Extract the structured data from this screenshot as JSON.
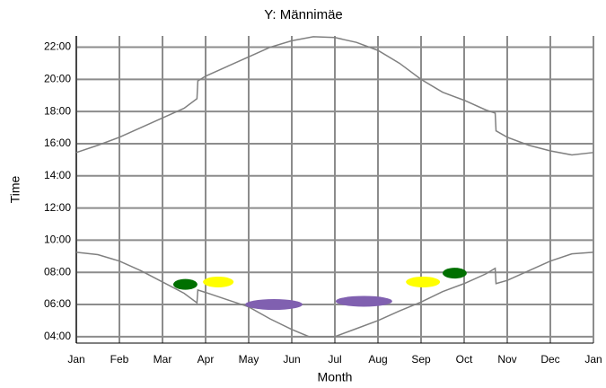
{
  "chart_data": {
    "type": "line",
    "title": "Y: Männimäe",
    "x_label": "Month",
    "y_label": "Time",
    "xlim": [
      0,
      12
    ],
    "ylim": [
      3.6,
      22.7
    ],
    "xticks": [
      {
        "value": 0,
        "label": "Jan"
      },
      {
        "value": 1,
        "label": "Feb"
      },
      {
        "value": 2,
        "label": "Mar"
      },
      {
        "value": 3,
        "label": "Apr"
      },
      {
        "value": 4,
        "label": "May"
      },
      {
        "value": 5,
        "label": "Jun"
      },
      {
        "value": 6,
        "label": "Jul"
      },
      {
        "value": 7,
        "label": "Aug"
      },
      {
        "value": 8,
        "label": "Sep"
      },
      {
        "value": 9,
        "label": "Oct"
      },
      {
        "value": 10,
        "label": "Nov"
      },
      {
        "value": 11,
        "label": "Dec"
      },
      {
        "value": 12,
        "label": "Jan"
      }
    ],
    "yticks": [
      {
        "value": 4,
        "label": "04:00"
      },
      {
        "value": 6,
        "label": "06:00"
      },
      {
        "value": 8,
        "label": "08:00"
      },
      {
        "value": 10,
        "label": "10:00"
      },
      {
        "value": 12,
        "label": "12:00"
      },
      {
        "value": 14,
        "label": "14:00"
      },
      {
        "value": 16,
        "label": "16:00"
      },
      {
        "value": 18,
        "label": "18:00"
      },
      {
        "value": 20,
        "label": "20:00"
      },
      {
        "value": 22,
        "label": "22:00"
      }
    ],
    "grid": true,
    "series": [
      {
        "color": "#808080",
        "x": [
          0,
          0.5,
          1,
          1.5,
          2,
          2.5,
          2.8,
          2.82,
          3,
          3.5,
          4,
          4.5,
          5,
          5.5,
          6,
          6.5,
          7,
          7.5,
          8,
          8.5,
          9,
          9.5,
          9.72,
          9.74,
          10,
          10.5,
          11,
          11.5,
          12
        ],
        "values": [
          15.45,
          15.9,
          16.4,
          17.0,
          17.6,
          18.2,
          18.8,
          19.9,
          20.2,
          20.8,
          21.4,
          22.0,
          22.4,
          22.65,
          22.6,
          22.3,
          21.8,
          21.0,
          20.0,
          19.2,
          18.7,
          18.1,
          17.9,
          16.8,
          16.4,
          15.9,
          15.55,
          15.3,
          15.45
        ]
      },
      {
        "color": "#808080",
        "x": [
          0,
          0.5,
          1,
          1.5,
          2,
          2.5,
          2.8,
          2.82,
          3,
          3.5,
          4,
          4.5,
          5,
          5.4,
          6,
          6.5,
          7,
          7.5,
          8,
          8.5,
          9,
          9.5,
          9.72,
          9.74,
          10,
          10.5,
          11,
          11.5,
          12
        ],
        "values": [
          9.25,
          9.1,
          8.7,
          8.1,
          7.4,
          6.7,
          6.1,
          6.9,
          6.75,
          6.3,
          5.85,
          5.1,
          4.45,
          4.0,
          4.0,
          4.5,
          5.0,
          5.6,
          6.15,
          6.8,
          7.3,
          7.9,
          8.25,
          7.3,
          7.5,
          8.1,
          8.7,
          9.15,
          9.25
        ]
      }
    ],
    "markers": [
      {
        "x": [
          2.25,
          2.81
        ],
        "y": 7.25,
        "color": "#007000"
      },
      {
        "x": [
          2.94,
          3.65
        ],
        "y": 7.4,
        "color": "#ffff00"
      },
      {
        "x": [
          3.92,
          5.25
        ],
        "y": 6.0,
        "color": "#8060b0"
      },
      {
        "x": [
          6.02,
          7.33
        ],
        "y": 6.2,
        "color": "#8060b0"
      },
      {
        "x": [
          7.65,
          8.44
        ],
        "y": 7.4,
        "color": "#ffff00"
      },
      {
        "x": [
          8.5,
          9.06
        ],
        "y": 7.95,
        "color": "#007000"
      }
    ]
  }
}
